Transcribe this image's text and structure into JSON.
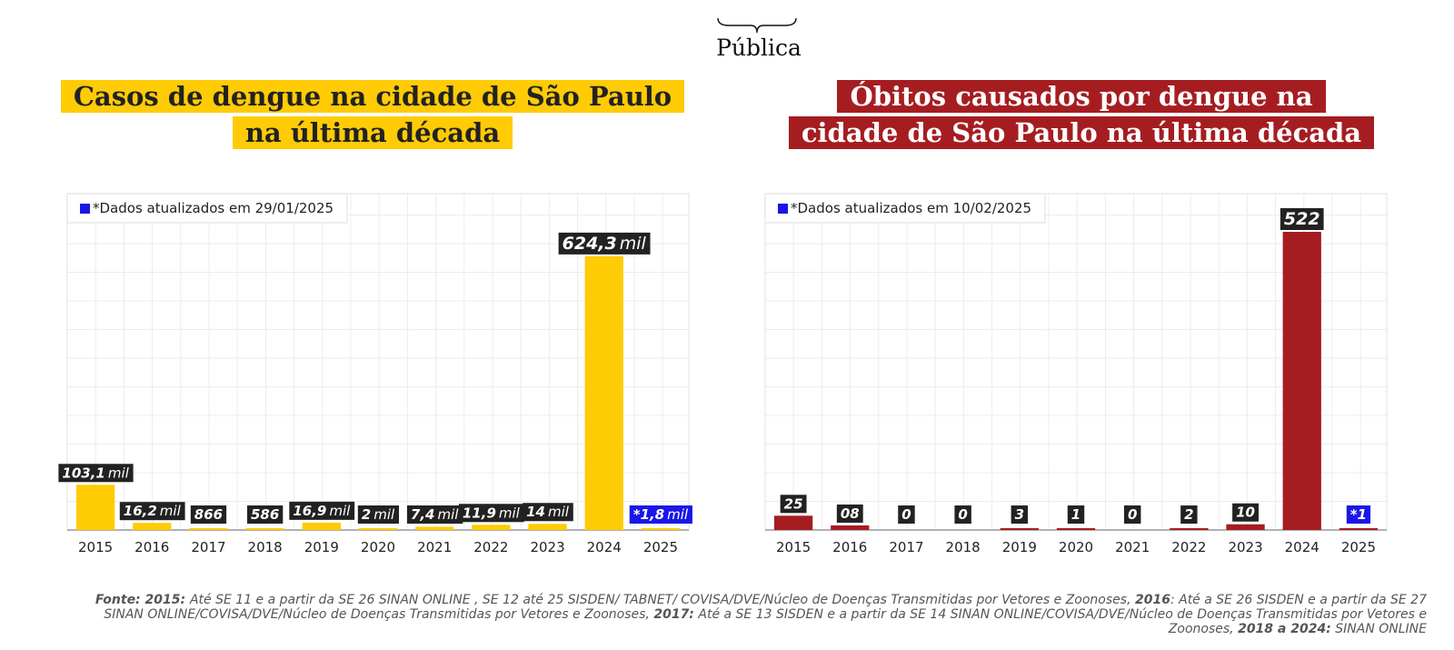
{
  "brand": {
    "name": "Pública"
  },
  "colors": {
    "yellow": "#ffcb05",
    "red": "#a51d21",
    "blue": "#1a16e8",
    "label_bg": "#222222"
  },
  "charts": [
    {
      "title": "Casos de dengue na cidade de São Paulo na última década",
      "title_lines": [
        "Casos de dengue na cidade de São Paulo",
        "na última década"
      ],
      "note": "*Dados atualizados em 29/01/2025",
      "bar_color": "#ffcb05"
    },
    {
      "title": "Óbitos causados por dengue na cidade de São Paulo na última década",
      "title_lines": [
        "Óbitos causados por dengue na",
        "cidade de São Paulo na última década"
      ],
      "note": "*Dados atualizados em 10/02/2025",
      "bar_color": "#a51d21"
    }
  ],
  "chart_data": [
    {
      "type": "bar",
      "title": "Casos de dengue na cidade de São Paulo na última década",
      "note": "*Dados atualizados em 29/01/2025",
      "categories": [
        "2015",
        "2016",
        "2017",
        "2018",
        "2019",
        "2020",
        "2021",
        "2022",
        "2023",
        "2024",
        "2025"
      ],
      "values": [
        103100,
        16200,
        866,
        586,
        16900,
        2000,
        7400,
        11900,
        14000,
        624300,
        1800
      ],
      "data_labels": [
        {
          "num": "103,1",
          "unit": "mil"
        },
        {
          "num": "16,2",
          "unit": "mil"
        },
        {
          "num": "866",
          "unit": ""
        },
        {
          "num": "586",
          "unit": ""
        },
        {
          "num": "16,9",
          "unit": "mil"
        },
        {
          "num": "2",
          "unit": "mil"
        },
        {
          "num": "7,4",
          "unit": "mil"
        },
        {
          "num": "11,9",
          "unit": "mil"
        },
        {
          "num": "14",
          "unit": "mil"
        },
        {
          "num": "624,3",
          "unit": "mil"
        },
        {
          "num": "*1,8",
          "unit": "mil"
        }
      ],
      "highlight_last_label": "blue",
      "ylim": [
        0,
        680000
      ],
      "grid": true,
      "legend": "top-left"
    },
    {
      "type": "bar",
      "title": "Óbitos causados por dengue na cidade de São Paulo na última década",
      "note": "*Dados atualizados em 10/02/2025",
      "categories": [
        "2015",
        "2016",
        "2017",
        "2018",
        "2019",
        "2020",
        "2021",
        "2022",
        "2023",
        "2024",
        "2025"
      ],
      "values": [
        25,
        8,
        0,
        0,
        3,
        1,
        0,
        2,
        10,
        522,
        1
      ],
      "data_labels": [
        {
          "num": "25",
          "unit": ""
        },
        {
          "num": "08",
          "unit": ""
        },
        {
          "num": "0",
          "unit": ""
        },
        {
          "num": "0",
          "unit": ""
        },
        {
          "num": "3",
          "unit": ""
        },
        {
          "num": "1",
          "unit": ""
        },
        {
          "num": "0",
          "unit": ""
        },
        {
          "num": "2",
          "unit": ""
        },
        {
          "num": "10",
          "unit": ""
        },
        {
          "num": "522",
          "unit": ""
        },
        {
          "num": "*1",
          "unit": ""
        }
      ],
      "highlight_last_label": "blue",
      "ylim": [
        0,
        522
      ],
      "grid": true,
      "legend": "top-left"
    }
  ],
  "footer": {
    "segments": [
      {
        "bold": true,
        "text": "Fonte: 2015: "
      },
      {
        "bold": false,
        "text": "Até SE 11 e a partir da SE 26 SINAN ONLINE , SE 12 até 25 SISDEN/ TABNET/ COVISA/DVE/Núcleo de Doenças Transmitidas por Vetores e Zoonoses,  "
      },
      {
        "bold": true,
        "text": "2016"
      },
      {
        "bold": false,
        "text": ": Até a SE 26 SISDEN e a partir da SE 27 SINAN ONLINE/COVISA/DVE/Núcleo de Doenças Transmitidas por Vetores e Zoonoses,  "
      },
      {
        "bold": true,
        "text": "2017:"
      },
      {
        "bold": false,
        "text": " Até a SE 13 SISDEN e a partir da SE 14 SINAN  ONLINE/COVISA/DVE/Núcleo de Doenças Transmitidas por Vetores e Zoonoses, "
      },
      {
        "bold": true,
        "text": "2018 a 2024:"
      },
      {
        "bold": false,
        "text": " SINAN ONLINE"
      }
    ]
  }
}
